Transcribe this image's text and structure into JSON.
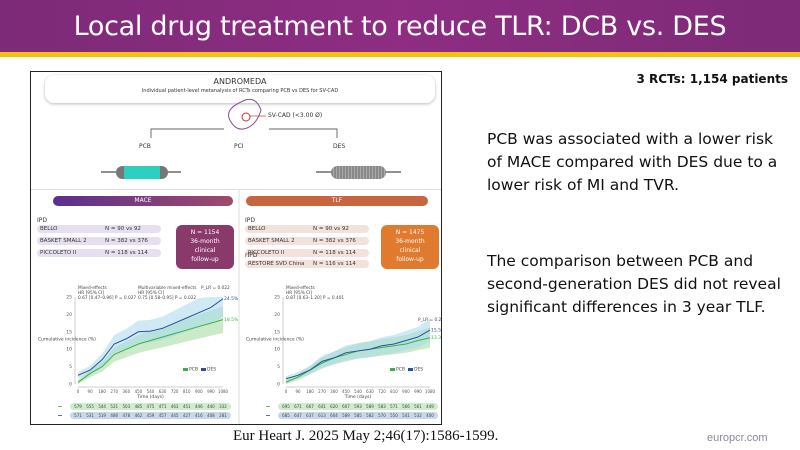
{
  "title": "Local drug treatment to reduce TLR: DCB vs. DES",
  "subtitle": "3 RCTs: 1,154 patients",
  "paragraph1": "PCB was associated with a lower risk of MACE compared with DES due to a lower risk of MI and TVR.",
  "paragraph2": "The comparison between PCB and second-generation DES did not reveal significant differences in 3 year TLF.",
  "citation": "Eur Heart J. 2025 May 2;46(17):1586-1599.",
  "site": "europcr.com",
  "figure": {
    "title": "ANDROMEDA",
    "subtitle": "Individual patient-level metanalysis of RCTs comparing PCB vs DES for SV-CAD",
    "svcad": "SV-CAD (<3.00 Ø)",
    "pcb": "PCB",
    "pci": "PCI",
    "des": "DES",
    "colors": {
      "mace": "#6a3a8a",
      "tlf": "#d86a3a",
      "pcb": "#3ab04a",
      "des": "#2a4f9a",
      "balloon": "#2ccfc0"
    },
    "mace": {
      "label": "MACE",
      "ipd": "IPD",
      "rows": [
        {
          "name": "BELLO",
          "n": "N = 90 vs 92"
        },
        {
          "name": "BASKET SMALL 2",
          "n": "N = 382 vs 376"
        },
        {
          "name": "PICCOLETO II",
          "n": "N = 118 vs 114"
        }
      ],
      "box": [
        "N = 1154",
        "36-month",
        "clinical",
        "follow-up"
      ]
    },
    "tlf": {
      "label": "TLF",
      "ipd": "IPD",
      "rows": [
        {
          "name": "BELLO",
          "n": "N = 90 vs 92"
        },
        {
          "name": "BASKET SMALL 2",
          "n": "N = 382 vs 376"
        },
        {
          "name": "PICCOLETO II",
          "n": "N = 118 vs 114"
        }
      ],
      "ripd": "rIPD",
      "ripd_row": {
        "name": "RESTORE SVD China",
        "n": "N = 116 vs 114"
      },
      "box": [
        "N = 1475",
        "36-month",
        "clinical",
        "follow-up"
      ]
    }
  },
  "chart_data": [
    {
      "type": "line",
      "title": "MACE",
      "ylabel": "Cumulative incidence (%)",
      "xlabel": "Time (days)",
      "ylim": [
        0,
        25
      ],
      "xlim": [
        0,
        1080
      ],
      "x": [
        0,
        90,
        180,
        270,
        360,
        450,
        540,
        630,
        720,
        810,
        900,
        990,
        1080
      ],
      "yticks": [
        0,
        5,
        10,
        15,
        20,
        25
      ],
      "annotations": [
        "Mixed-effects",
        "HR [95% CI]",
        "0.67 [0.47–0.96] P = 0.027",
        "Multivariable mixed-effects",
        "HR [95% CI]",
        "0.75 [0.58–0.95] P = 0.022",
        "P_LR = 0.022"
      ],
      "series": [
        {
          "name": "PCB",
          "end_label": "18.5%",
          "values": [
            0.5,
            3,
            5,
            8.5,
            10,
            11.5,
            12.5,
            13.5,
            14.5,
            15.5,
            16.5,
            17.5,
            18.5
          ],
          "at_risk": [
            579,
            555,
            544,
            521,
            503,
            485,
            475,
            471,
            463,
            451,
            446,
            440,
            332
          ]
        },
        {
          "name": "DES",
          "end_label": "24.5%",
          "values": [
            2.5,
            4,
            7,
            11.5,
            13,
            15,
            15.2,
            16,
            17.5,
            19,
            20.5,
            22,
            24.5
          ],
          "at_risk": [
            571,
            531,
            519,
            486,
            478,
            462,
            459,
            457,
            445,
            427,
            416,
            408,
            281
          ]
        }
      ],
      "legend": "bottom-right"
    },
    {
      "type": "line",
      "title": "TLF",
      "ylabel": "Cumulative incidence (%)",
      "xlabel": "Time (days)",
      "ylim": [
        0,
        25
      ],
      "xlim": [
        0,
        1080
      ],
      "x": [
        0,
        90,
        180,
        270,
        360,
        450,
        540,
        630,
        720,
        810,
        900,
        990,
        1080
      ],
      "yticks": [
        0,
        5,
        10,
        15,
        20,
        25
      ],
      "annotations": [
        "Mixed-effects",
        "HR [95% CI]",
        "0.87 [0.63–1.20] P = 0.401",
        "P_LR = 0.292"
      ],
      "series": [
        {
          "name": "PCB",
          "end_label": "13.3%",
          "values": [
            0.5,
            2,
            4,
            6,
            7.5,
            8.5,
            9.5,
            10,
            10.5,
            11,
            11.5,
            12.5,
            13.3
          ],
          "at_risk": [
            695,
            671,
            667,
            641,
            620,
            607,
            593,
            589,
            583,
            571,
            566,
            561,
            449
          ]
        },
        {
          "name": "DES",
          "end_label": "15.5%",
          "values": [
            1.5,
            2.5,
            4,
            6.5,
            7.5,
            9,
            9.5,
            10,
            11,
            11.5,
            12.5,
            13.5,
            15.5
          ],
          "at_risk": [
            685,
            647,
            637,
            613,
            604,
            589,
            585,
            582,
            570,
            550,
            541,
            532,
            400
          ]
        }
      ],
      "legend": "bottom-right"
    }
  ]
}
